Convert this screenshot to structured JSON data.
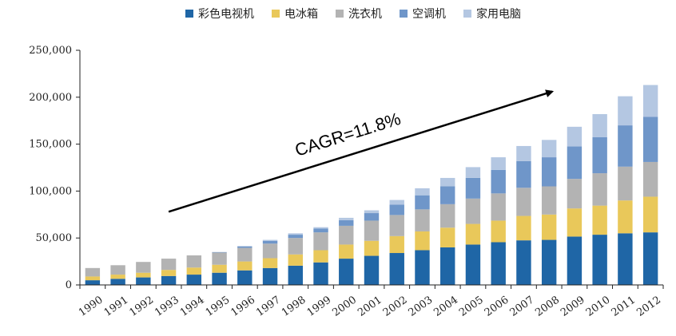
{
  "chart_data": {
    "type": "bar",
    "stacked": true,
    "categories": [
      "1990",
      "1991",
      "1992",
      "1993",
      "1994",
      "1995",
      "1996",
      "1997",
      "1998",
      "1999",
      "2000",
      "2001",
      "2002",
      "2003",
      "2004",
      "2005",
      "2006",
      "2007",
      "2008",
      "2009",
      "2010",
      "2011",
      "2012"
    ],
    "series": [
      {
        "name": "彩色电视机",
        "color": "#1f66a6",
        "values": [
          5000,
          6500,
          8000,
          9500,
          11000,
          13000,
          15500,
          18000,
          20500,
          24000,
          28000,
          31000,
          34000,
          37000,
          40000,
          43000,
          45500,
          47500,
          48000,
          51500,
          53500,
          55000,
          56000
        ]
      },
      {
        "name": "电冰箱",
        "color": "#e9c85a",
        "values": [
          4000,
          4500,
          5000,
          6500,
          7500,
          8500,
          9500,
          10500,
          12000,
          13000,
          15000,
          16000,
          18000,
          20000,
          21000,
          22000,
          23000,
          26000,
          27000,
          30000,
          31000,
          35000,
          38000
        ]
      },
      {
        "name": "洗衣机",
        "color": "#b3b3b3",
        "values": [
          9000,
          10000,
          11500,
          12000,
          13000,
          13000,
          14500,
          15500,
          17500,
          19000,
          20000,
          21500,
          22500,
          23500,
          25000,
          27000,
          29000,
          30000,
          30000,
          31500,
          34500,
          36000,
          37000
        ]
      },
      {
        "name": "空调机",
        "color": "#6f96c9",
        "values": [
          0,
          0,
          0,
          0,
          0,
          500,
          1500,
          3000,
          3500,
          4000,
          6000,
          8000,
          11000,
          15000,
          19000,
          22000,
          25000,
          28500,
          31000,
          34500,
          38500,
          44000,
          48000
        ]
      },
      {
        "name": "家用电脑",
        "color": "#b4c7e2",
        "values": [
          0,
          0,
          0,
          0,
          0,
          0,
          500,
          1000,
          1500,
          1500,
          2500,
          3000,
          5000,
          7500,
          9000,
          11500,
          13500,
          16000,
          18500,
          21000,
          24500,
          31000,
          34000
        ]
      }
    ],
    "xlabel": "",
    "ylabel": "",
    "ylim": [
      0,
      250000
    ],
    "yticks": [
      0,
      50000,
      100000,
      150000,
      200000,
      250000
    ],
    "ytick_labels": [
      "0",
      "50,000",
      "100,000",
      "150,000",
      "200,000",
      "250,000"
    ],
    "grid": false,
    "legend_position": "top",
    "annotation": {
      "text": "CAGR=11.8%",
      "arrow_from": [
        "1993",
        78000
      ],
      "arrow_to": [
        "2008",
        206000
      ]
    }
  }
}
